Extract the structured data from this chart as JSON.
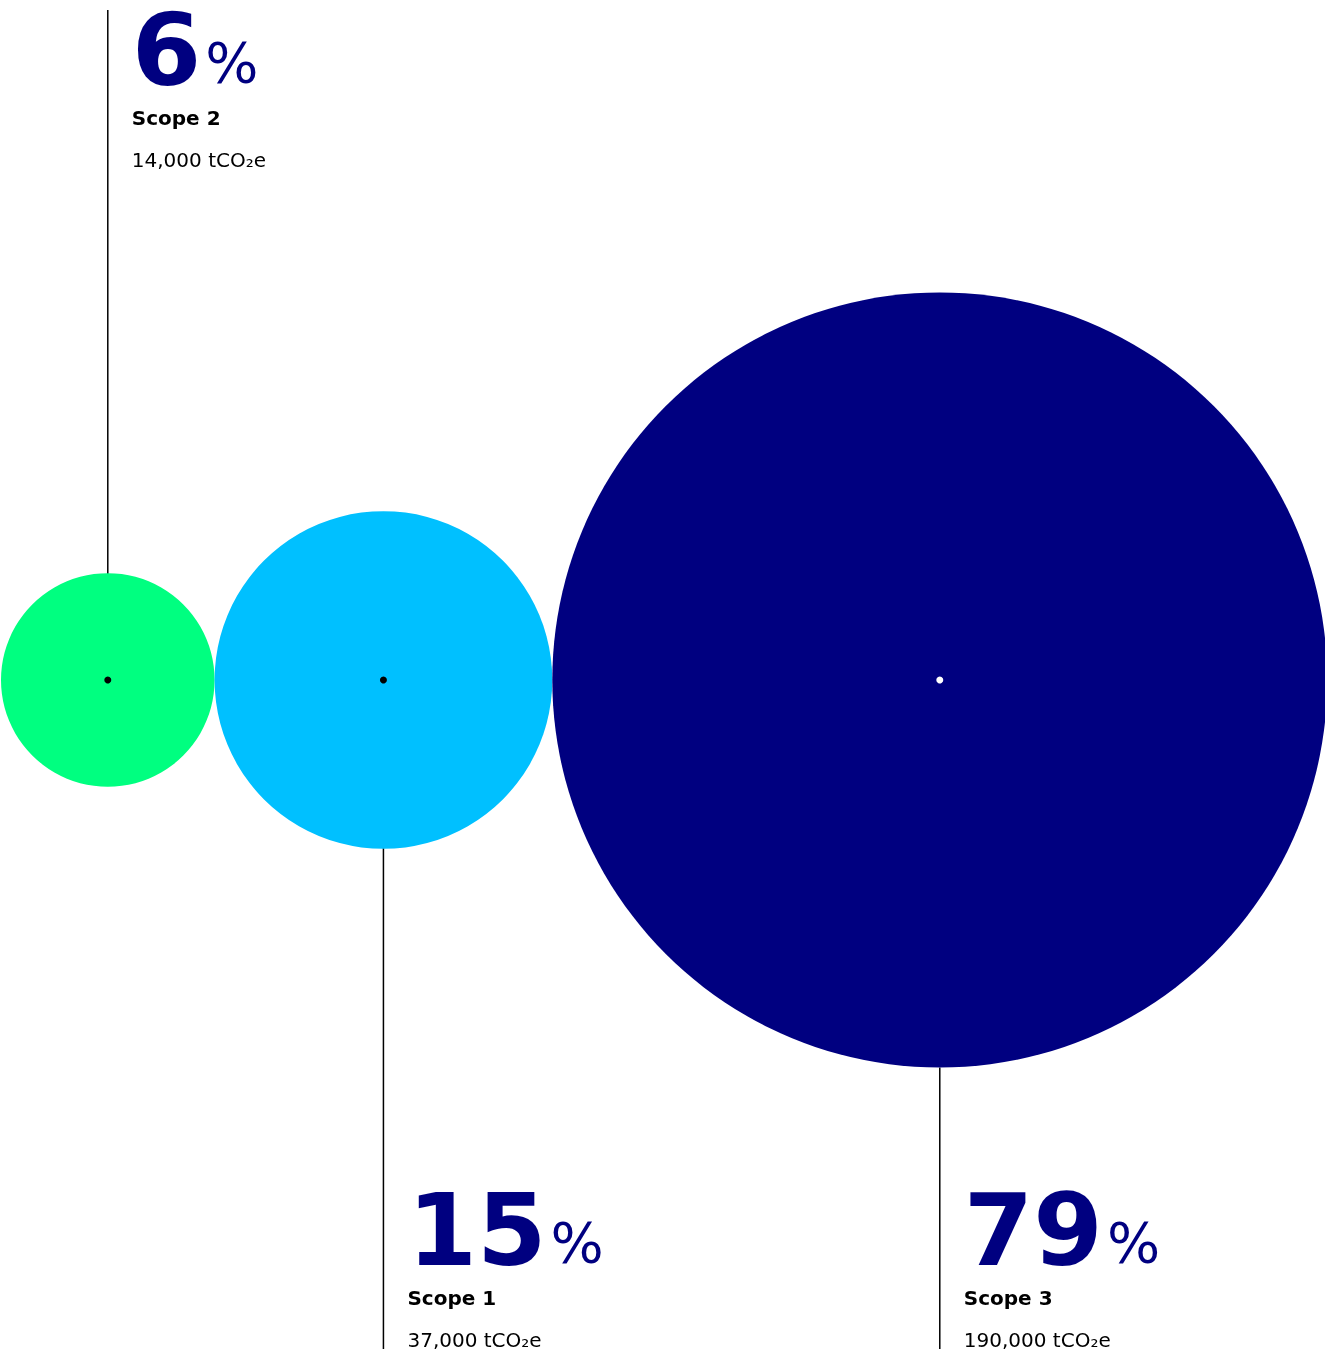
{
  "chart_data": {
    "type": "other",
    "categories": [
      "Scope 2",
      "Scope 1",
      "Scope 3"
    ],
    "values": [
      6,
      15,
      79
    ],
    "value_labels": [
      "6%",
      "15%",
      "79%"
    ],
    "colors": [
      "#00ff80",
      "#00c0ff",
      "#000080"
    ],
    "annotations": [
      {
        "text": "14,000 tCO₂e",
        "x": "Scope 2"
      },
      {
        "text": "37,000 tCO₂e",
        "x": "Scope 1"
      },
      {
        "text": "190,000 tCO₂e",
        "x": "Scope 3"
      }
    ]
  }
}
